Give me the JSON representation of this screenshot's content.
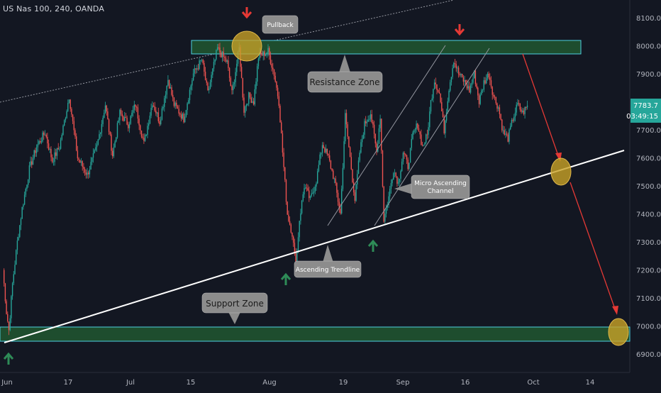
{
  "symbol_title": "US Nas 100, 240, OANDA",
  "colors": {
    "background": "#131722",
    "up": "#26a69a",
    "down": "#ef5350",
    "zone_fill": "#1e4d2e",
    "zone_stroke": "#4dd0e1",
    "trendline": "#ffffff",
    "channel": "#9598a1",
    "forecast": "#e53935",
    "circle": "#c9a227",
    "arrow_up": "#2e8b57",
    "arrow_down": "#e53935",
    "callout_bg": "#8c8c8c",
    "price_badge": "#26a69a"
  },
  "chart_data": {
    "type": "candlestick",
    "instrument": "US Nas 100",
    "timeframe": "240",
    "x_tick_labels": [
      "Jun",
      "17",
      "Jul",
      "15",
      "Aug",
      "19",
      "Sep",
      "16",
      "Oct",
      "14"
    ],
    "y_tick_labels": [
      "6900.0",
      "7000.0",
      "7100.0",
      "7200.0",
      "7300.0",
      "7400.0",
      "7500.0",
      "7600.0",
      "7700.0",
      "7800.0",
      "7900.0",
      "8000.0",
      "8100.0"
    ],
    "ylim": [
      6860,
      8150
    ],
    "last_price": "7783.7",
    "countdown": "03:49:15",
    "price_path": [
      [
        0,
        7200
      ],
      [
        3,
        7050
      ],
      [
        5,
        6985
      ],
      [
        8,
        7150
      ],
      [
        12,
        7300
      ],
      [
        16,
        7420
      ],
      [
        22,
        7560
      ],
      [
        28,
        7640
      ],
      [
        35,
        7690
      ],
      [
        41,
        7590
      ],
      [
        47,
        7640
      ],
      [
        55,
        7820
      ],
      [
        62,
        7600
      ],
      [
        70,
        7540
      ],
      [
        78,
        7640
      ],
      [
        85,
        7790
      ],
      [
        91,
        7610
      ],
      [
        97,
        7760
      ],
      [
        104,
        7720
      ],
      [
        110,
        7790
      ],
      [
        117,
        7650
      ],
      [
        124,
        7800
      ],
      [
        130,
        7730
      ],
      [
        137,
        7880
      ],
      [
        142,
        7790
      ],
      [
        150,
        7740
      ],
      [
        158,
        7900
      ],
      [
        165,
        7950
      ],
      [
        170,
        7830
      ],
      [
        178,
        7990
      ],
      [
        186,
        7940
      ],
      [
        190,
        7830
      ],
      [
        196,
        7990
      ],
      [
        200,
        7770
      ],
      [
        204,
        7820
      ],
      [
        208,
        7800
      ],
      [
        212,
        7960
      ],
      [
        220,
        7980
      ],
      [
        225,
        7900
      ],
      [
        229,
        7800
      ],
      [
        232,
        7620
      ],
      [
        236,
        7400
      ],
      [
        240,
        7330
      ],
      [
        243,
        7210
      ],
      [
        246,
        7380
      ],
      [
        250,
        7500
      ],
      [
        255,
        7450
      ],
      [
        260,
        7520
      ],
      [
        265,
        7650
      ],
      [
        270,
        7600
      ],
      [
        275,
        7520
      ],
      [
        280,
        7400
      ],
      [
        284,
        7750
      ],
      [
        288,
        7600
      ],
      [
        292,
        7450
      ],
      [
        296,
        7620
      ],
      [
        300,
        7720
      ],
      [
        305,
        7760
      ],
      [
        310,
        7620
      ],
      [
        313,
        7750
      ],
      [
        316,
        7380
      ],
      [
        320,
        7460
      ],
      [
        324,
        7560
      ],
      [
        328,
        7510
      ],
      [
        332,
        7620
      ],
      [
        336,
        7570
      ],
      [
        340,
        7680
      ],
      [
        344,
        7720
      ],
      [
        348,
        7640
      ],
      [
        352,
        7680
      ],
      [
        355,
        7800
      ],
      [
        358,
        7880
      ],
      [
        362,
        7830
      ],
      [
        366,
        7700
      ],
      [
        370,
        7850
      ],
      [
        374,
        7950
      ],
      [
        378,
        7900
      ],
      [
        383,
        7870
      ],
      [
        387,
        7840
      ],
      [
        391,
        7900
      ],
      [
        395,
        7800
      ],
      [
        399,
        7870
      ],
      [
        403,
        7900
      ],
      [
        407,
        7820
      ],
      [
        411,
        7780
      ],
      [
        415,
        7690
      ],
      [
        419,
        7670
      ],
      [
        423,
        7740
      ],
      [
        427,
        7790
      ],
      [
        431,
        7760
      ],
      [
        435,
        7784
      ]
    ]
  },
  "annotations": {
    "pullback": "Pullback",
    "resistance": "Resistance Zone",
    "micro_channel": [
      "Micro Ascending",
      "Channel"
    ],
    "trendline": "Ascending Trendline",
    "support": "Support Zone"
  }
}
